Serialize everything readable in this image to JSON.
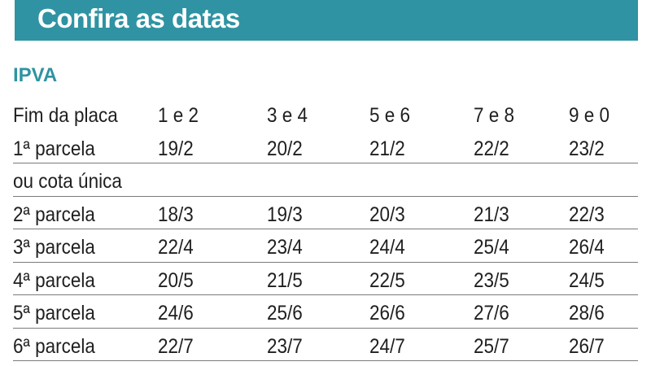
{
  "header": {
    "title": "Confira as datas",
    "bg_color": "#2f93a3"
  },
  "section": {
    "title": "IPVA",
    "color": "#2f93a3"
  },
  "table": {
    "columns": [
      "Fim da placa",
      "1 e 2",
      "3 e 4",
      "5 e 6",
      "7 e 8",
      "9 e 0"
    ],
    "rows": [
      {
        "label": "1ª parcela",
        "values": [
          "19/2",
          "20/2",
          "21/2",
          "22/2",
          "23/2"
        ]
      },
      {
        "label": "ou cota única",
        "values": [
          "",
          "",
          "",
          "",
          ""
        ]
      },
      {
        "label": "2ª parcela",
        "values": [
          "18/3",
          "19/3",
          "20/3",
          "21/3",
          "22/3"
        ]
      },
      {
        "label": "3ª parcela",
        "values": [
          "22/4",
          "23/4",
          "24/4",
          "25/4",
          "26/4"
        ]
      },
      {
        "label": "4ª parcela",
        "values": [
          "20/5",
          "21/5",
          "22/5",
          "23/5",
          "24/5"
        ]
      },
      {
        "label": "5ª parcela",
        "values": [
          "24/6",
          "25/6",
          "26/6",
          "27/6",
          "28/6"
        ]
      },
      {
        "label": "6ª parcela",
        "values": [
          "22/7",
          "23/7",
          "24/7",
          "25/7",
          "26/7"
        ]
      }
    ]
  }
}
